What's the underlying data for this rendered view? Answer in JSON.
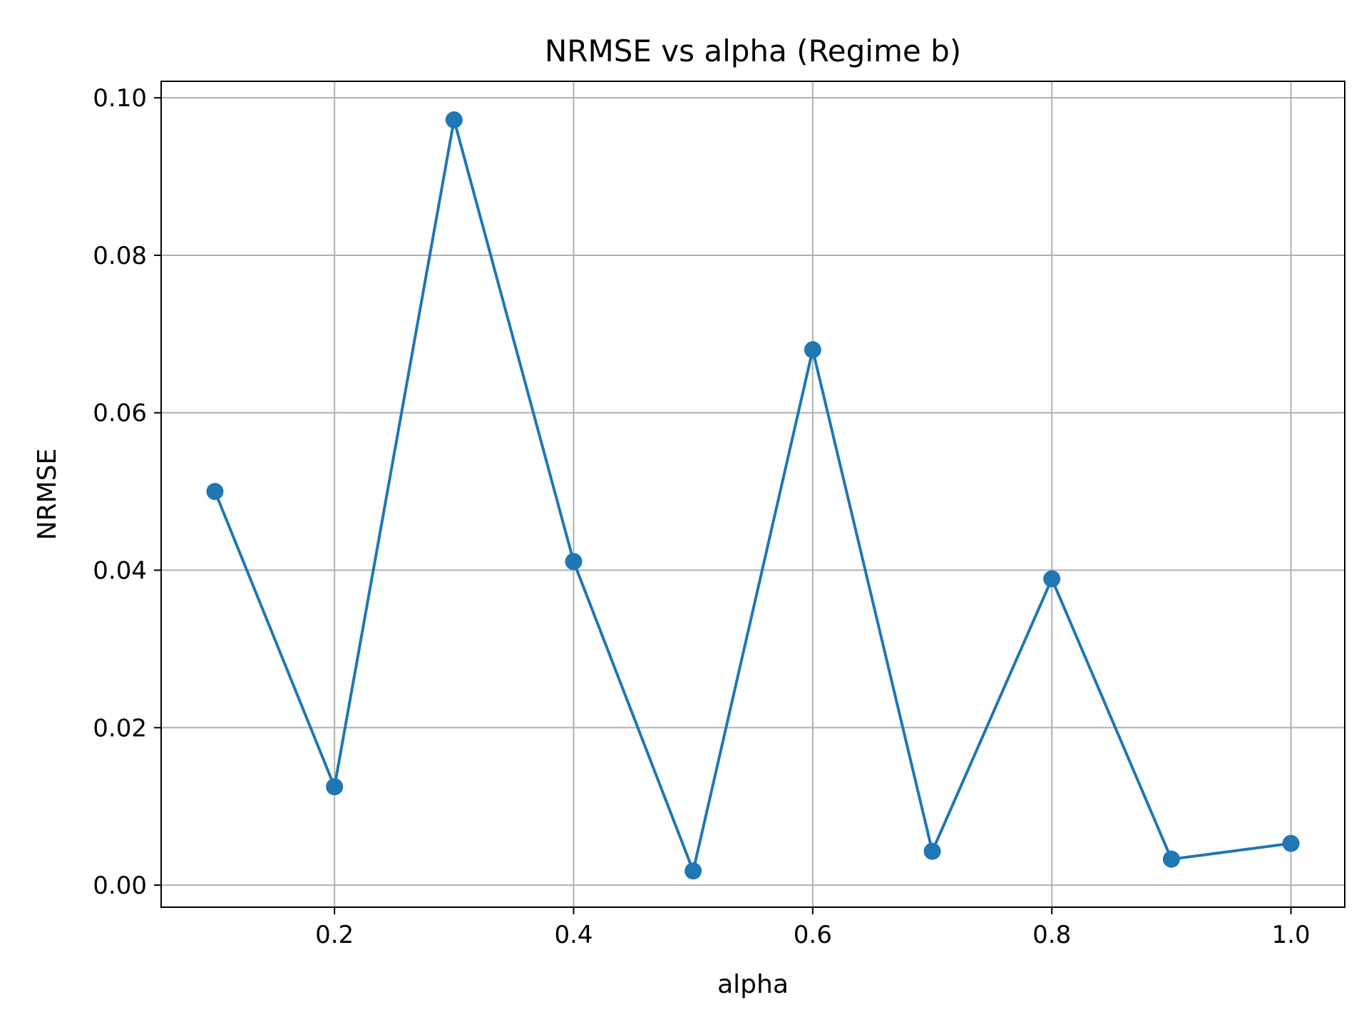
{
  "chart_data": {
    "type": "line",
    "title": "NRMSE vs alpha (Regime b)",
    "xlabel": "alpha",
    "ylabel": "NRMSE",
    "xlim": [
      0.055,
      1.045
    ],
    "ylim": [
      -0.0028,
      0.1021
    ],
    "xticks": [
      0.2,
      0.4,
      0.6,
      0.8,
      1.0
    ],
    "xtick_labels": [
      "0.2",
      "0.4",
      "0.6",
      "0.8",
      "1.0"
    ],
    "yticks": [
      0.0,
      0.02,
      0.04,
      0.06,
      0.08,
      0.1
    ],
    "ytick_labels": [
      "0.00",
      "0.02",
      "0.04",
      "0.06",
      "0.08",
      "0.10"
    ],
    "grid": true,
    "series": [
      {
        "x": [
          0.1,
          0.2,
          0.3,
          0.4,
          0.5,
          0.6,
          0.7,
          0.8,
          0.9,
          1.0
        ],
        "y": [
          0.05,
          0.0125,
          0.0972,
          0.0411,
          0.0018,
          0.068,
          0.0043,
          0.0389,
          0.0033,
          0.0053
        ],
        "color": "#1f77b4",
        "marker": "circle"
      }
    ]
  }
}
